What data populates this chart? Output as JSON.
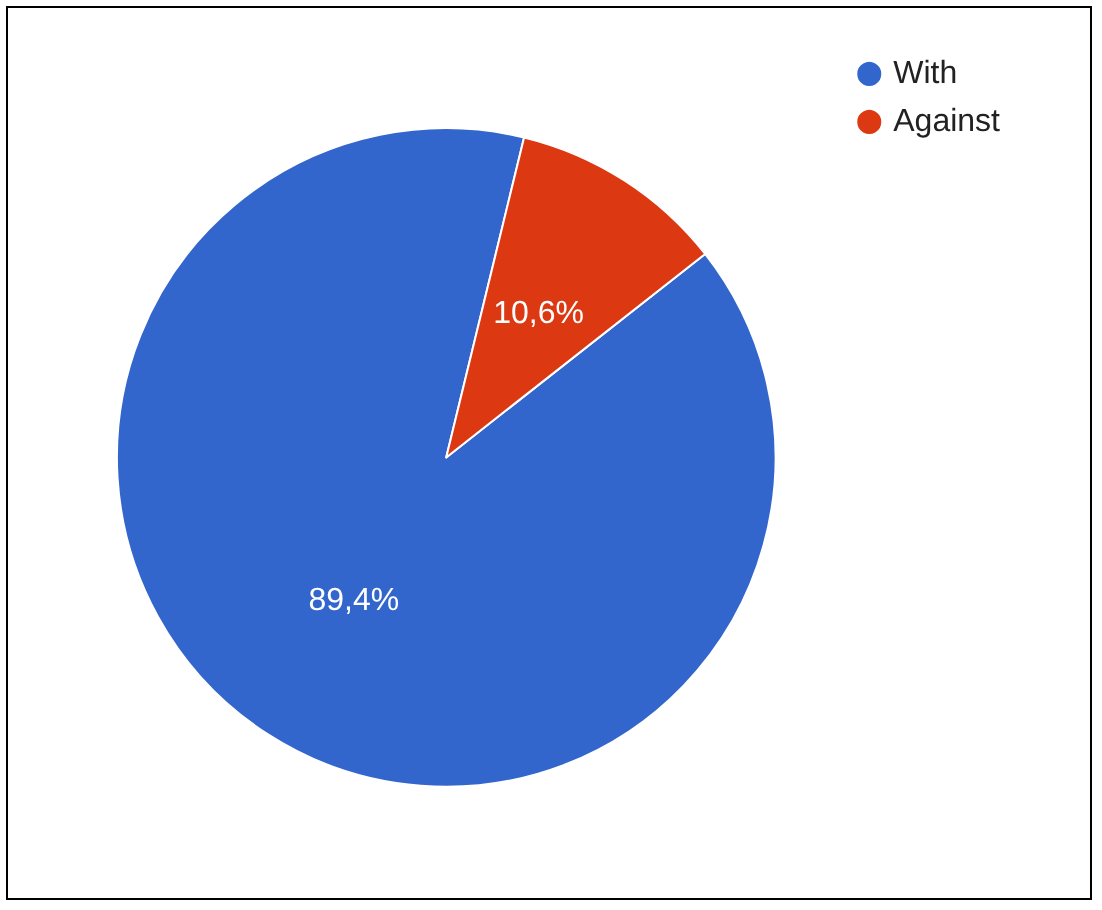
{
  "chart_data": {
    "type": "pie",
    "categories": [
      "With",
      "Against"
    ],
    "values": [
      89.4,
      10.6
    ],
    "colors": [
      "#3366cc",
      "#dc3912"
    ],
    "value_labels": [
      "89,4%",
      "10,6%"
    ],
    "legend": "top right"
  }
}
